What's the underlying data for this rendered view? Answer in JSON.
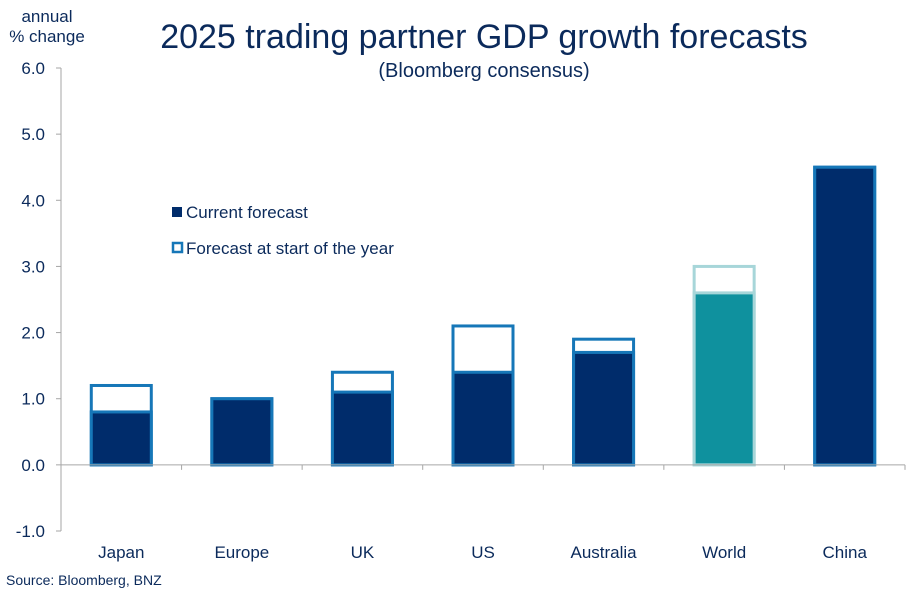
{
  "chart_data": {
    "type": "bar",
    "title": "2025 trading partner GDP growth forecasts",
    "subtitle": "(Bloomberg consensus)",
    "ylabel_line1": "annual",
    "ylabel_line2": "% change",
    "ylim": [
      -1.0,
      6.0
    ],
    "yticks": [
      "6.0",
      "5.0",
      "4.0",
      "3.0",
      "2.0",
      "1.0",
      "0.0",
      "-1.0"
    ],
    "categories": [
      "Japan",
      "Europe",
      "UK",
      "US",
      "Australia",
      "World",
      "China"
    ],
    "series": [
      {
        "name": "Current forecast",
        "values": [
          0.8,
          1.0,
          1.1,
          1.4,
          1.7,
          2.6,
          4.5
        ]
      },
      {
        "name": "Forecast at start of the year",
        "values": [
          1.2,
          1.0,
          1.4,
          2.1,
          1.9,
          3.0,
          4.5
        ]
      }
    ],
    "grid": false,
    "legend_position": "upper-left",
    "source": "Source: Bloomberg, BNZ"
  },
  "colors": {
    "current": "#002c6b",
    "outline": "#1677b8",
    "world_fill": "#0f919e",
    "world_outline": "#a7d6d9",
    "text": "#0b2a5b",
    "axis": "#a6a6a6"
  }
}
